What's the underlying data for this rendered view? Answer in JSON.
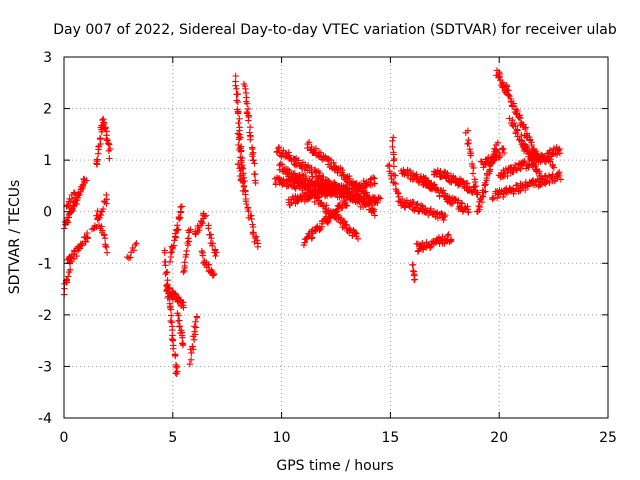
{
  "chart_data": {
    "type": "scatter",
    "title": "Day 007 of 2022, Sidereal Day-to-day VTEC variation (SDTVAR) for receiver ulab",
    "xlabel": "GPS time / hours",
    "ylabel": "SDTVAR / TECUs",
    "xlim": [
      0,
      25
    ],
    "ylim": [
      -4,
      3
    ],
    "xticks": [
      0,
      5,
      10,
      15,
      20,
      25
    ],
    "yticks": [
      -4,
      -3,
      -2,
      -1,
      0,
      1,
      2,
      3
    ],
    "grid": true,
    "marker": "plus",
    "color": "#ff0000",
    "segments": [
      {
        "x0": 0.0,
        "y0": -0.3,
        "x1": 1.0,
        "y1": 0.65,
        "n": 45
      },
      {
        "x0": 0.0,
        "y0": -1.55,
        "x1": 0.3,
        "y1": -1.0,
        "n": 14
      },
      {
        "x0": 0.2,
        "y0": -1.0,
        "x1": 1.1,
        "y1": -0.45,
        "n": 32
      },
      {
        "x0": 0.1,
        "y0": 0.1,
        "x1": 0.5,
        "y1": 0.35,
        "n": 12
      },
      {
        "x0": 1.5,
        "y0": 0.9,
        "x1": 1.8,
        "y1": 1.8,
        "n": 20
      },
      {
        "x0": 1.8,
        "y0": 1.8,
        "x1": 2.1,
        "y1": 1.1,
        "n": 18
      },
      {
        "x0": 1.3,
        "y0": -0.4,
        "x1": 2.0,
        "y1": 0.3,
        "n": 18
      },
      {
        "x0": 1.5,
        "y0": 0.0,
        "x1": 2.0,
        "y1": -0.75,
        "n": 16
      },
      {
        "x0": 2.9,
        "y0": -0.9,
        "x1": 3.3,
        "y1": -0.6,
        "n": 8
      },
      {
        "x0": 4.6,
        "y0": -0.8,
        "x1": 5.2,
        "y1": -3.2,
        "n": 40
      },
      {
        "x0": 4.7,
        "y0": -1.5,
        "x1": 5.5,
        "y1": -1.8,
        "n": 35
      },
      {
        "x0": 4.9,
        "y0": -0.9,
        "x1": 5.4,
        "y1": 0.1,
        "n": 25
      },
      {
        "x0": 5.2,
        "y0": -2.0,
        "x1": 5.5,
        "y1": -2.6,
        "n": 14
      },
      {
        "x0": 5.5,
        "y0": -1.2,
        "x1": 5.8,
        "y1": -0.3,
        "n": 16
      },
      {
        "x0": 5.8,
        "y0": -2.9,
        "x1": 6.1,
        "y1": -2.0,
        "n": 16
      },
      {
        "x0": 6.0,
        "y0": -0.5,
        "x1": 6.5,
        "y1": 0.0,
        "n": 18
      },
      {
        "x0": 6.3,
        "y0": -0.8,
        "x1": 6.9,
        "y1": -1.3,
        "n": 20
      },
      {
        "x0": 6.6,
        "y0": -0.3,
        "x1": 7.0,
        "y1": -0.9,
        "n": 14
      },
      {
        "x0": 7.9,
        "y0": 2.6,
        "x1": 8.2,
        "y1": 0.8,
        "n": 30
      },
      {
        "x0": 8.0,
        "y0": 0.9,
        "x1": 8.9,
        "y1": -0.7,
        "n": 35
      },
      {
        "x0": 8.3,
        "y0": 2.5,
        "x1": 8.8,
        "y1": 0.6,
        "n": 30
      },
      {
        "x0": 8.0,
        "y0": 1.5,
        "x1": 8.3,
        "y1": 0.5,
        "n": 14
      },
      {
        "x0": 9.7,
        "y0": 0.6,
        "x1": 14.5,
        "y1": 0.2,
        "n": 150
      },
      {
        "x0": 9.8,
        "y0": 1.2,
        "x1": 14.3,
        "y1": 0.0,
        "n": 140
      },
      {
        "x0": 9.9,
        "y0": 0.9,
        "x1": 13.5,
        "y1": -0.5,
        "n": 110
      },
      {
        "x0": 10.3,
        "y0": 0.2,
        "x1": 14.3,
        "y1": 0.6,
        "n": 120
      },
      {
        "x0": 11.2,
        "y0": 1.3,
        "x1": 14.0,
        "y1": 0.3,
        "n": 90
      },
      {
        "x0": 10.6,
        "y0": 0.7,
        "x1": 12.5,
        "y1": 0.4,
        "n": 50
      },
      {
        "x0": 11.0,
        "y0": -0.6,
        "x1": 13.0,
        "y1": 0.2,
        "n": 60
      },
      {
        "x0": 15.1,
        "y0": 1.4,
        "x1": 15.2,
        "y1": 0.7,
        "n": 10
      },
      {
        "x0": 14.9,
        "y0": 0.9,
        "x1": 15.4,
        "y1": 0.3,
        "n": 14
      },
      {
        "x0": 15.4,
        "y0": 0.2,
        "x1": 17.5,
        "y1": -0.1,
        "n": 60
      },
      {
        "x0": 15.5,
        "y0": 0.8,
        "x1": 17.0,
        "y1": 0.5,
        "n": 50
      },
      {
        "x0": 16.0,
        "y0": -1.0,
        "x1": 16.1,
        "y1": -1.3,
        "n": 8
      },
      {
        "x0": 16.2,
        "y0": -0.7,
        "x1": 17.8,
        "y1": -0.5,
        "n": 50
      },
      {
        "x0": 16.5,
        "y0": 0.6,
        "x1": 18.6,
        "y1": 0.0,
        "n": 70
      },
      {
        "x0": 17.0,
        "y0": 0.8,
        "x1": 19.0,
        "y1": 0.4,
        "n": 70
      },
      {
        "x0": 18.5,
        "y0": 1.6,
        "x1": 18.9,
        "y1": 0.5,
        "n": 16
      },
      {
        "x0": 19.0,
        "y0": 0.0,
        "x1": 19.9,
        "y1": 1.3,
        "n": 40
      },
      {
        "x0": 19.2,
        "y0": 0.9,
        "x1": 20.2,
        "y1": 1.2,
        "n": 30
      },
      {
        "x0": 19.9,
        "y0": 2.7,
        "x1": 20.3,
        "y1": 2.3,
        "n": 18
      },
      {
        "x0": 20.3,
        "y0": 2.4,
        "x1": 21.8,
        "y1": 1.0,
        "n": 55
      },
      {
        "x0": 19.7,
        "y0": 0.3,
        "x1": 22.8,
        "y1": 0.7,
        "n": 90
      },
      {
        "x0": 20.0,
        "y0": 0.7,
        "x1": 22.8,
        "y1": 1.2,
        "n": 80
      },
      {
        "x0": 20.5,
        "y0": 1.8,
        "x1": 22.0,
        "y1": 0.6,
        "n": 45
      },
      {
        "x0": 21.0,
        "y0": 1.3,
        "x1": 22.5,
        "y1": 0.9,
        "n": 40
      }
    ]
  }
}
